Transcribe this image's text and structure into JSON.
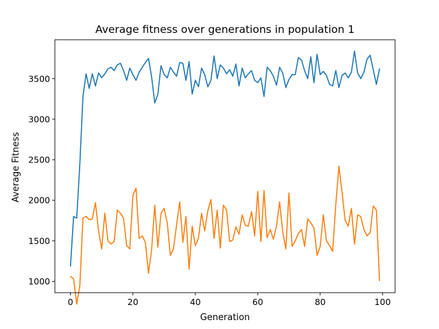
{
  "chart_data": {
    "type": "line",
    "title": "Average fitness over generations in population 1",
    "xlabel": "Generation",
    "ylabel": "Average Fitness",
    "xlim": [
      -5,
      104
    ],
    "ylim": [
      860,
      3980
    ],
    "xticks": [
      0,
      20,
      40,
      60,
      80,
      100
    ],
    "yticks": [
      1000,
      1500,
      2000,
      2500,
      3000,
      3500
    ],
    "grid": false,
    "legend": "none",
    "series": [
      {
        "color": "#1f77b4",
        "x": [
          0,
          1,
          2,
          3,
          4,
          5,
          6,
          7,
          8,
          9,
          10,
          11,
          12,
          13,
          14,
          15,
          16,
          17,
          18,
          19,
          20,
          21,
          22,
          23,
          24,
          25,
          26,
          27,
          28,
          29,
          30,
          31,
          32,
          33,
          34,
          35,
          36,
          37,
          38,
          39,
          40,
          41,
          42,
          43,
          44,
          45,
          46,
          47,
          48,
          49,
          50,
          51,
          52,
          53,
          54,
          55,
          56,
          57,
          58,
          59,
          60,
          61,
          62,
          63,
          64,
          65,
          66,
          67,
          68,
          69,
          70,
          71,
          72,
          73,
          74,
          75,
          76,
          77,
          78,
          79,
          80,
          81,
          82,
          83,
          84,
          85,
          86,
          87,
          88,
          89,
          90,
          91,
          92,
          93,
          94,
          95,
          96,
          97,
          98,
          99
        ],
        "values": [
          1190,
          1800,
          1780,
          2450,
          3280,
          3560,
          3380,
          3560,
          3410,
          3570,
          3510,
          3560,
          3620,
          3640,
          3600,
          3670,
          3690,
          3600,
          3480,
          3630,
          3550,
          3480,
          3580,
          3640,
          3700,
          3750,
          3520,
          3200,
          3310,
          3660,
          3550,
          3510,
          3640,
          3580,
          3530,
          3700,
          3690,
          3480,
          3710,
          3310,
          3480,
          3400,
          3630,
          3550,
          3400,
          3480,
          3780,
          3500,
          3670,
          3630,
          3560,
          3610,
          3530,
          3680,
          3410,
          3630,
          3510,
          3560,
          3600,
          3480,
          3450,
          3510,
          3280,
          3640,
          3600,
          3530,
          3420,
          3640,
          3570,
          3390,
          3490,
          3550,
          3550,
          3760,
          3730,
          3600,
          3500,
          3770,
          3450,
          3800,
          3550,
          3590,
          3540,
          3430,
          3410,
          3600,
          3390,
          3540,
          3570,
          3510,
          3580,
          3840,
          3570,
          3500,
          3580,
          3740,
          3790,
          3610,
          3430,
          3620
        ]
      },
      {
        "color": "#ff7f0e",
        "x": [
          0,
          1,
          2,
          3,
          4,
          5,
          6,
          7,
          8,
          9,
          10,
          11,
          12,
          13,
          14,
          15,
          16,
          17,
          18,
          19,
          20,
          21,
          22,
          23,
          24,
          25,
          26,
          27,
          28,
          29,
          30,
          31,
          32,
          33,
          34,
          35,
          36,
          37,
          38,
          39,
          40,
          41,
          42,
          43,
          44,
          45,
          46,
          47,
          48,
          49,
          50,
          51,
          52,
          53,
          54,
          55,
          56,
          57,
          58,
          59,
          60,
          61,
          62,
          63,
          64,
          65,
          66,
          67,
          68,
          69,
          70,
          71,
          72,
          73,
          74,
          75,
          76,
          77,
          78,
          79,
          80,
          81,
          82,
          83,
          84,
          85,
          86,
          87,
          88,
          89,
          90,
          91,
          92,
          93,
          94,
          95,
          96,
          97,
          98,
          99
        ],
        "values": [
          1060,
          1030,
          720,
          950,
          1780,
          1800,
          1760,
          1770,
          1970,
          1620,
          1400,
          1840,
          1500,
          1460,
          1490,
          1880,
          1840,
          1780,
          1440,
          1400,
          2060,
          2150,
          1530,
          1560,
          1480,
          1100,
          1390,
          1940,
          1420,
          1840,
          1900,
          1720,
          1320,
          1400,
          1700,
          1980,
          1480,
          1800,
          1150,
          1680,
          1440,
          1530,
          1840,
          1620,
          1870,
          2010,
          1530,
          1880,
          1410,
          1940,
          1880,
          1490,
          1510,
          1670,
          1580,
          1820,
          1690,
          1680,
          1860,
          1560,
          2110,
          1490,
          2120,
          1540,
          1640,
          1520,
          1680,
          1980,
          1610,
          1400,
          2090,
          1430,
          1500,
          1590,
          1640,
          1430,
          1770,
          1720,
          1660,
          1320,
          1430,
          1820,
          1500,
          1440,
          1370,
          1950,
          2420,
          2100,
          1750,
          1680,
          1900,
          1460,
          1820,
          1800,
          1640,
          1560,
          1600,
          1930,
          1880,
          1010
        ]
      }
    ]
  }
}
